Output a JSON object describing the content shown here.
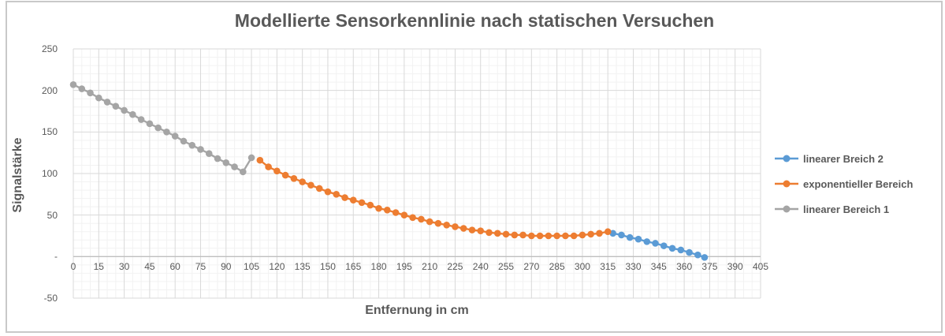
{
  "chart_data": {
    "type": "line",
    "title": "Modellierte Sensorkennlinie nach statischen Versuchen",
    "xlabel": "Entfernung in cm",
    "ylabel": "Signalstärke",
    "xlim": [
      0,
      405
    ],
    "ylim": [
      -50,
      250
    ],
    "x_major_step": 15,
    "x_minor_step": 5,
    "y_major_step": 50,
    "y_minor_step": 10,
    "grid": true,
    "legend_position": "right",
    "x_ticks": [
      0,
      15,
      30,
      45,
      60,
      75,
      90,
      105,
      120,
      135,
      150,
      165,
      180,
      195,
      210,
      225,
      240,
      255,
      270,
      285,
      300,
      315,
      330,
      345,
      360,
      375,
      390,
      405
    ],
    "y_ticks": [
      {
        "value": 250,
        "label": "250"
      },
      {
        "value": 200,
        "label": "200"
      },
      {
        "value": 150,
        "label": "150"
      },
      {
        "value": 100,
        "label": "100"
      },
      {
        "value": 50,
        "label": "50"
      },
      {
        "value": 0,
        "label": "-"
      },
      {
        "value": -50,
        "label": "-50"
      }
    ],
    "series": [
      {
        "name": "linearer Breich 2",
        "color": "#5B9BD5",
        "points": [
          [
            318,
            28
          ],
          [
            323,
            26
          ],
          [
            328,
            23
          ],
          [
            333,
            21
          ],
          [
            338,
            18
          ],
          [
            343,
            16
          ],
          [
            348,
            13
          ],
          [
            353,
            10
          ],
          [
            358,
            8
          ],
          [
            363,
            5
          ],
          [
            368,
            2
          ],
          [
            372,
            -1
          ]
        ]
      },
      {
        "name": "exponentieller Bereich",
        "color": "#ED7D31",
        "points": [
          [
            110,
            116
          ],
          [
            115,
            108
          ],
          [
            120,
            103
          ],
          [
            125,
            98
          ],
          [
            130,
            94
          ],
          [
            135,
            90
          ],
          [
            140,
            86
          ],
          [
            145,
            82
          ],
          [
            150,
            78
          ],
          [
            155,
            75
          ],
          [
            160,
            71
          ],
          [
            165,
            68
          ],
          [
            170,
            65
          ],
          [
            175,
            62
          ],
          [
            180,
            58
          ],
          [
            185,
            56
          ],
          [
            190,
            53
          ],
          [
            195,
            50
          ],
          [
            200,
            47
          ],
          [
            205,
            45
          ],
          [
            210,
            42
          ],
          [
            215,
            40
          ],
          [
            220,
            38
          ],
          [
            225,
            36
          ],
          [
            230,
            34
          ],
          [
            235,
            32
          ],
          [
            240,
            31
          ],
          [
            245,
            29
          ],
          [
            250,
            28
          ],
          [
            255,
            27
          ],
          [
            260,
            26
          ],
          [
            265,
            26
          ],
          [
            270,
            25
          ],
          [
            275,
            25
          ],
          [
            280,
            25
          ],
          [
            285,
            25
          ],
          [
            290,
            25
          ],
          [
            295,
            25
          ],
          [
            300,
            26
          ],
          [
            305,
            27
          ],
          [
            310,
            28
          ],
          [
            315,
            30
          ]
        ]
      },
      {
        "name": "linearer Bereich 1",
        "color": "#A5A5A5",
        "points": [
          [
            0,
            207
          ],
          [
            5,
            202
          ],
          [
            10,
            197
          ],
          [
            15,
            191
          ],
          [
            20,
            186
          ],
          [
            25,
            181
          ],
          [
            30,
            176
          ],
          [
            35,
            171
          ],
          [
            40,
            165
          ],
          [
            45,
            160
          ],
          [
            50,
            155
          ],
          [
            55,
            150
          ],
          [
            60,
            145
          ],
          [
            65,
            139
          ],
          [
            70,
            134
          ],
          [
            75,
            129
          ],
          [
            80,
            124
          ],
          [
            85,
            118
          ],
          [
            90,
            113
          ],
          [
            95,
            108
          ],
          [
            100,
            102
          ],
          [
            105,
            119
          ]
        ]
      }
    ]
  },
  "colors": {
    "frame_border": "#c9c9c9",
    "major_grid": "#d9d9d9",
    "minor_grid": "#f2f2f2",
    "zero_axis": "#bfbfbf",
    "text": "#595959"
  }
}
